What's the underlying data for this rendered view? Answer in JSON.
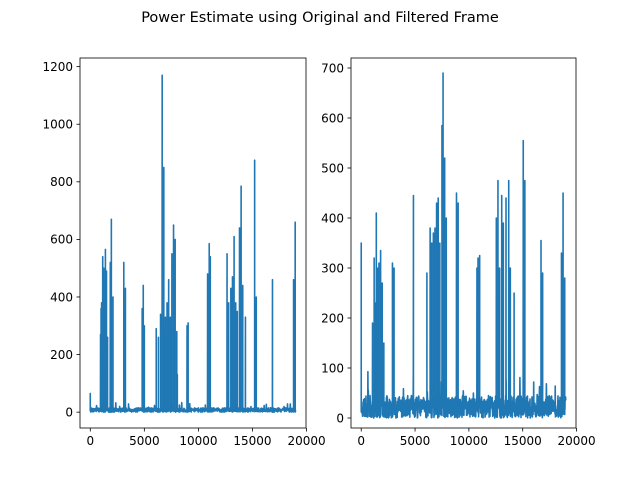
{
  "figure": {
    "title": "Power Estimate using Original and Filtered Frame"
  },
  "chart_data": [
    {
      "type": "line",
      "title": "",
      "xlabel": "",
      "ylabel": "",
      "xlim": [
        -950,
        19950
      ],
      "ylim": [
        -55,
        1230
      ],
      "xticks": [
        0,
        5000,
        10000,
        15000,
        20000
      ],
      "yticks": [
        0,
        200,
        400,
        600,
        800,
        1000,
        1200
      ],
      "xtick_labels": [
        "0",
        "5000",
        "10000",
        "15000",
        "20000"
      ],
      "ytick_labels": [
        "0",
        "200",
        "400",
        "600",
        "800",
        "1000",
        "1200"
      ],
      "grid": false,
      "color": "#1f77b4",
      "n_points": 19000,
      "baseline": [
        0,
        15
      ],
      "series": [
        {
          "peaks": [
            [
              0,
              65
            ],
            [
              950,
              270
            ],
            [
              1000,
              360
            ],
            [
              1050,
              380
            ],
            [
              1150,
              540
            ],
            [
              1250,
              500
            ],
            [
              1350,
              460
            ],
            [
              1400,
              565
            ],
            [
              1500,
              490
            ],
            [
              1600,
              260
            ],
            [
              1850,
              520
            ],
            [
              1950,
              670
            ],
            [
              2100,
              400
            ],
            [
              3100,
              520
            ],
            [
              3250,
              430
            ],
            [
              4800,
              360
            ],
            [
              4900,
              440
            ],
            [
              5000,
              300
            ],
            [
              6100,
              290
            ],
            [
              6300,
              260
            ],
            [
              6500,
              340
            ],
            [
              6650,
              1170
            ],
            [
              6800,
              850
            ],
            [
              6950,
              330
            ],
            [
              7100,
              380
            ],
            [
              7250,
              460
            ],
            [
              7400,
              330
            ],
            [
              7550,
              550
            ],
            [
              7700,
              650
            ],
            [
              7850,
              600
            ],
            [
              8000,
              280
            ],
            [
              8050,
              130
            ],
            [
              8950,
              300
            ],
            [
              9050,
              310
            ],
            [
              10850,
              480
            ],
            [
              11000,
              585
            ],
            [
              11100,
              540
            ],
            [
              12650,
              550
            ],
            [
              12800,
              380
            ],
            [
              13000,
              430
            ],
            [
              13150,
              470
            ],
            [
              13300,
              610
            ],
            [
              13450,
              380
            ],
            [
              13600,
              350
            ],
            [
              13800,
              640
            ],
            [
              13950,
              785
            ],
            [
              14100,
              440
            ],
            [
              14350,
              330
            ],
            [
              15200,
              875
            ],
            [
              15350,
              400
            ],
            [
              16850,
              460
            ],
            [
              18800,
              460
            ],
            [
              18950,
              660
            ],
            [
              19050,
              510
            ]
          ]
        }
      ]
    },
    {
      "type": "line",
      "title": "",
      "xlabel": "",
      "ylabel": "",
      "xlim": [
        -950,
        19950
      ],
      "ylim": [
        -20,
        720
      ],
      "xticks": [
        0,
        5000,
        10000,
        15000,
        20000
      ],
      "yticks": [
        0,
        100,
        200,
        300,
        400,
        500,
        600,
        700
      ],
      "xtick_labels": [
        "0",
        "5000",
        "10000",
        "15000",
        "20000"
      ],
      "ytick_labels": [
        "0",
        "100",
        "200",
        "300",
        "400",
        "500",
        "600",
        "700"
      ],
      "grid": false,
      "color": "#1f77b4",
      "n_points": 19000,
      "baseline": [
        0,
        45
      ],
      "series": [
        {
          "peaks": [
            [
              0,
              350
            ],
            [
              1050,
              190
            ],
            [
              1200,
              320
            ],
            [
              1300,
              230
            ],
            [
              1400,
              410
            ],
            [
              1550,
              300
            ],
            [
              1650,
              310
            ],
            [
              1800,
              335
            ],
            [
              1950,
              270
            ],
            [
              2100,
              150
            ],
            [
              2900,
              310
            ],
            [
              3050,
              300
            ],
            [
              4850,
              445
            ],
            [
              6100,
              290
            ],
            [
              6400,
              380
            ],
            [
              6550,
              350
            ],
            [
              6700,
              370
            ],
            [
              6850,
              380
            ],
            [
              7000,
              430
            ],
            [
              7150,
              440
            ],
            [
              7300,
              350
            ],
            [
              7500,
              585
            ],
            [
              7600,
              690
            ],
            [
              7750,
              520
            ],
            [
              7900,
              400
            ],
            [
              8850,
              450
            ],
            [
              9000,
              430
            ],
            [
              10750,
              300
            ],
            [
              10850,
              320
            ],
            [
              11000,
              325
            ],
            [
              12550,
              400
            ],
            [
              12700,
              475
            ],
            [
              12850,
              300
            ],
            [
              13050,
              445
            ],
            [
              13200,
              390
            ],
            [
              13450,
              440
            ],
            [
              13700,
              475
            ],
            [
              13850,
              300
            ],
            [
              14200,
              250
            ],
            [
              15050,
              555
            ],
            [
              15200,
              475
            ],
            [
              16700,
              355
            ],
            [
              16850,
              290
            ],
            [
              18600,
              330
            ],
            [
              18750,
              450
            ],
            [
              18900,
              280
            ]
          ]
        }
      ]
    }
  ]
}
